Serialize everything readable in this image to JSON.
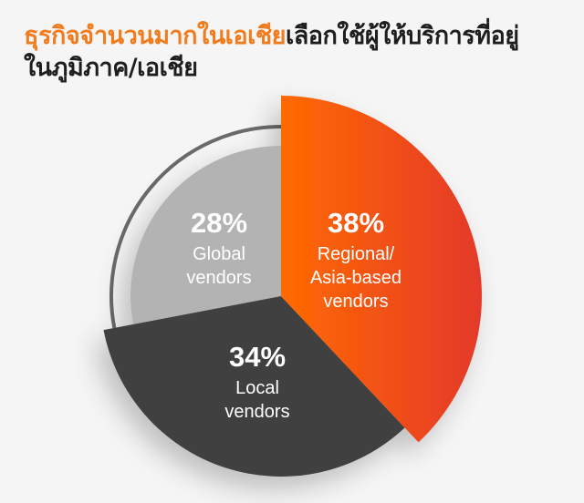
{
  "chart_data": {
    "type": "pie",
    "title_highlight": "ธุรกิจจำนวนมากในเอเชีย",
    "title_rest_line1": "เลือกใช้ผู้ให้บริการที่อยู่",
    "title_line2": "ในภูมิภาค/เอเชีย",
    "slices": [
      {
        "pct_label": "38%",
        "value": 38,
        "label_lines": [
          "Regional/",
          "Asia-based",
          "vendors"
        ],
        "color": "#ff6a00",
        "color_end": "#e4392a"
      },
      {
        "pct_label": "34%",
        "value": 34,
        "label_lines": [
          "Local",
          "vendors"
        ],
        "color": "#404040"
      },
      {
        "pct_label": "28%",
        "value": 28,
        "label_lines": [
          "Global",
          "vendors"
        ],
        "color": "#b3b3b3"
      }
    ]
  }
}
